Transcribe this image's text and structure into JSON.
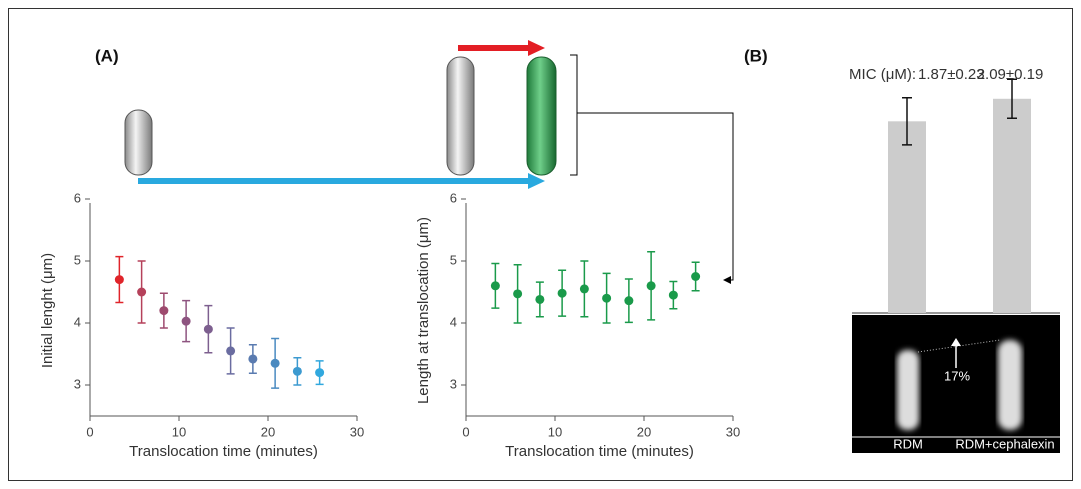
{
  "figure": {
    "panel_a": "(A)",
    "panel_b": "(B)"
  },
  "micrograph": {
    "annotation": "17%"
  },
  "chart_data": [
    {
      "type": "errorscatter",
      "x_label": "Translocation time (minutes)",
      "y_label": "Initial lenght (μm)",
      "x": [
        3.3,
        5.8,
        8.3,
        10.8,
        13.3,
        15.8,
        18.3,
        20.8,
        23.3,
        25.8
      ],
      "values": [
        4.7,
        4.5,
        4.2,
        4.03,
        3.9,
        3.55,
        3.42,
        3.35,
        3.22,
        3.2
      ],
      "errors": [
        0.37,
        0.5,
        0.28,
        0.33,
        0.38,
        0.37,
        0.23,
        0.4,
        0.22,
        0.19
      ],
      "colors": [
        "#e0242a",
        "#b5415a",
        "#9e4a6e",
        "#8e5480",
        "#7d5f8f",
        "#6a6ca0",
        "#5a7bb0",
        "#4a8ac0",
        "#3c9ad0",
        "#31a8de"
      ],
      "xlim": [
        0,
        30
      ],
      "xticks": [
        0,
        10,
        20,
        30
      ],
      "ylim": [
        2.5,
        6
      ],
      "yticks": [
        3,
        4,
        5,
        6
      ]
    },
    {
      "type": "errorscatter",
      "x_label": "Translocation time (minutes)",
      "y_label": "Length at translocation (μm)",
      "x": [
        3.3,
        5.8,
        8.3,
        10.8,
        13.3,
        15.8,
        18.3,
        20.8,
        23.3,
        25.8
      ],
      "values": [
        4.6,
        4.47,
        4.38,
        4.48,
        4.55,
        4.4,
        4.36,
        4.6,
        4.45,
        4.75
      ],
      "errors": [
        0.36,
        0.47,
        0.28,
        0.37,
        0.45,
        0.4,
        0.35,
        0.55,
        0.22,
        0.23
      ],
      "color": "#1a9a4a",
      "xlim": [
        0,
        30
      ],
      "xticks": [
        0,
        10,
        20,
        30
      ],
      "ylim": [
        2.5,
        6
      ],
      "yticks": [
        3,
        4,
        5,
        6
      ]
    },
    {
      "type": "bar",
      "label_prefix": "MIC (μM):",
      "categories": [
        "RDM",
        "RDM+cephalexin"
      ],
      "values": [
        1.87,
        2.09
      ],
      "errors": [
        0.23,
        0.19
      ],
      "value_labels": [
        "1.87±0.23",
        "2.09±0.19"
      ],
      "color": "#cccccc"
    }
  ]
}
